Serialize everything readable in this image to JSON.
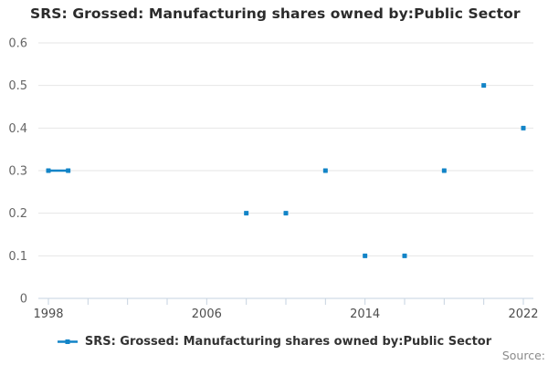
{
  "title": "SRS: Grossed: Manufacturing shares owned by:Public Sector",
  "legend": {
    "label": "SRS: Grossed: Manufacturing shares owned by:Public Sector",
    "marker": "line-with-square-marker"
  },
  "source_label": "Source:",
  "colors": {
    "series": "#1284c7",
    "gridline": "#e6e6e6",
    "axis": "#c6d3e0",
    "y_tick_label": "#666666",
    "x_tick_label": "#4d4d4d",
    "title": "#2b2b2b",
    "source": "#8a8a8a"
  },
  "chart_data": {
    "type": "line",
    "title": "SRS: Grossed: Manufacturing shares owned by:Public Sector",
    "xlabel": "",
    "ylabel": "",
    "grid": true,
    "legend_position": "bottom",
    "points": [
      {
        "x": 1998,
        "y": 0.3
      },
      {
        "x": 1999,
        "y": 0.3
      },
      {
        "x": 2008,
        "y": 0.2
      },
      {
        "x": 2010,
        "y": 0.2
      },
      {
        "x": 2012,
        "y": 0.3
      },
      {
        "x": 2014,
        "y": 0.1
      },
      {
        "x": 2016,
        "y": 0.1
      },
      {
        "x": 2018,
        "y": 0.3
      },
      {
        "x": 2020,
        "y": 0.5
      },
      {
        "x": 2022,
        "y": 0.4
      }
    ],
    "connect_rule": "only-consecutive-years",
    "x_range": [
      1998,
      2022
    ],
    "x_tick_interval": 2,
    "x_ticks_labeled": [
      "1998",
      "2006",
      "2014",
      "2022"
    ],
    "y_ticks": [
      0,
      0.1,
      0.2,
      0.3,
      0.4,
      0.5,
      0.6
    ],
    "y_tick_labels": [
      "0",
      "0.1",
      "0.2",
      "0.3",
      "0.4",
      "0.5",
      "0.6"
    ],
    "ylim": [
      0,
      0.6
    ]
  }
}
